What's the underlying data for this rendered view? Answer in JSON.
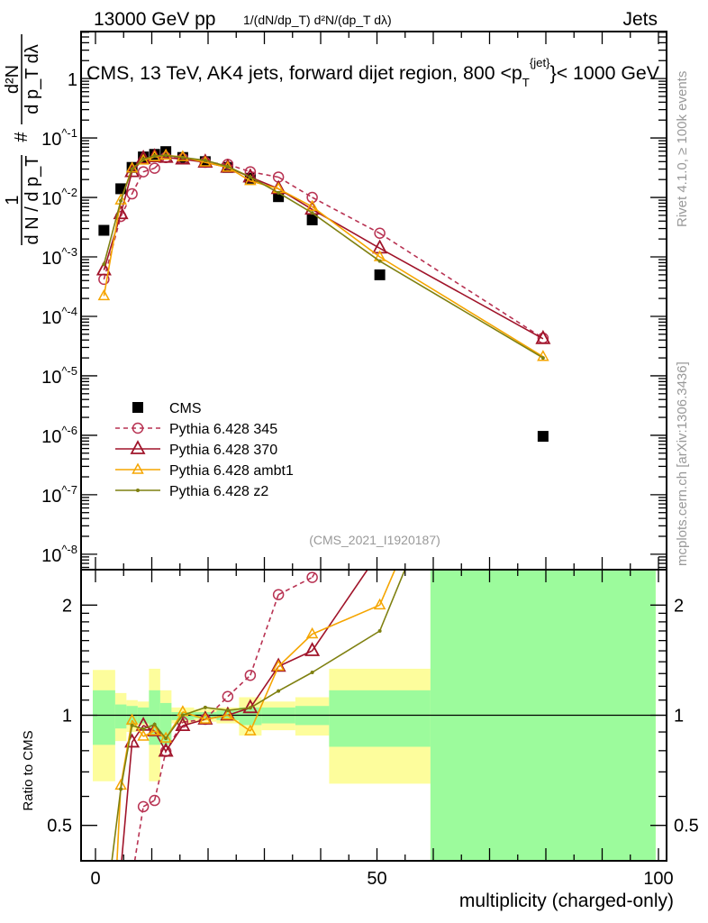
{
  "header": {
    "left": "13000 GeV pp",
    "right": "Jets"
  },
  "side_labels": {
    "rivet": "Rivet 4.1.0, ≥ 100k events",
    "mcplots": "mcplots.cern.ch [arXiv:1306.3436]"
  },
  "chart_data": {
    "type": "line",
    "title": "CMS, 13 TeV, AK4 jets, forward dijet region, 800 < p_T^{jet} < 1000 GeV",
    "title_parts": {
      "main": "CMS, 13 TeV, AK4 jets, forward dijet region, 800 <",
      "p": "p",
      "sup": "{jet}",
      "sub": "T",
      "end": "}< 1000 GeV"
    },
    "analysis_label": "(CMS_2021_I1920187)",
    "xlabel": "multiplicity (charged-only)",
    "ylabel": "1/(dN/dp_T) d²N/(dp_T dλ)",
    "ylabel_parts": {
      "one": "1",
      "den": "d N / d p_T",
      "num": "d²N",
      "den2": "d p_T  dλ",
      "hash": "#"
    },
    "ratio_ylabel": "Ratio to CMS",
    "xlim": [
      -2,
      101
    ],
    "ylim_log10": [
      -8.26,
      0.79
    ],
    "ratio_ylim": [
      0.4,
      2.5
    ],
    "x_tick_labels": [
      "0",
      "50",
      "100"
    ],
    "y_tick_labels": [
      "1",
      "10^-1",
      "10^-2",
      "10^-3",
      "10^-4",
      "10^-5",
      "10^-6",
      "10^-7",
      "10^-8"
    ],
    "ratio_tick_labels": [
      "0.5",
      "1",
      "2"
    ],
    "legend_position": "lower-left",
    "bin_edges": [
      -0.5,
      3.5,
      5.5,
      7.5,
      9.5,
      11.5,
      13.5,
      17.5,
      21.5,
      25.5,
      29.5,
      35.5,
      41.5,
      59.5,
      99.5
    ],
    "x": [
      1.5,
      4.5,
      6.5,
      8.5,
      10.5,
      12.5,
      15.5,
      19.5,
      23.5,
      27.5,
      32.5,
      38.5,
      50.5,
      79.5
    ],
    "series": [
      {
        "name": "CMS",
        "color": "#000000",
        "marker": "square",
        "values": [
          0.0028,
          0.014,
          0.032,
          0.048,
          0.053,
          0.059,
          0.047,
          0.04,
          0.032,
          0.021,
          0.0103,
          0.0042,
          0.0005,
          9.6e-07
        ]
      },
      {
        "name": "Pythia 6.428 345",
        "color": "#b83252",
        "marker": "circle",
        "dashed": true,
        "values": [
          0.00042,
          0.0048,
          0.0115,
          0.027,
          0.031,
          0.047,
          0.045,
          0.039,
          0.036,
          0.027,
          0.022,
          0.01,
          0.0025,
          4.3e-05
        ]
      },
      {
        "name": "Pythia 6.428 370",
        "color": "#a0142a",
        "marker": "triangle",
        "values": [
          0.0006,
          0.0053,
          0.027,
          0.045,
          0.048,
          0.047,
          0.044,
          0.039,
          0.032,
          0.022,
          0.014,
          0.0063,
          0.0014,
          4.2e-05
        ]
      },
      {
        "name": "Pythia 6.428 ambt1",
        "color": "#f5a500",
        "marker": "triangle-small",
        "values": [
          0.00022,
          0.009,
          0.031,
          0.042,
          0.048,
          0.051,
          0.048,
          0.039,
          0.032,
          0.019,
          0.014,
          0.007,
          0.001,
          2.1e-05
        ]
      },
      {
        "name": "Pythia 6.428 z2",
        "color": "#7f8010",
        "marker": "dot",
        "values": [
          0.00075,
          0.0088,
          0.03,
          0.044,
          0.05,
          0.051,
          0.047,
          0.042,
          0.033,
          0.022,
          0.012,
          0.0055,
          0.00085,
          2e-05
        ]
      }
    ],
    "ratio_bands": {
      "stat_color": "#9cfb9c",
      "total_color": "#fdfd9c",
      "stat": [
        [
          0.83,
          1.17
        ],
        [
          0.92,
          1.07
        ],
        [
          0.94,
          1.06
        ],
        [
          0.95,
          1.05
        ],
        [
          0.83,
          1.17
        ],
        [
          0.83,
          1.08
        ],
        [
          0.97,
          1.02
        ],
        [
          0.98,
          1.02
        ],
        [
          0.97,
          1.03
        ],
        [
          0.94,
          1.05
        ],
        [
          0.95,
          1.05
        ],
        [
          0.94,
          1.06
        ],
        [
          0.82,
          1.17
        ],
        [
          0.3,
          3.0
        ]
      ],
      "total": [
        [
          0.66,
          1.33
        ],
        [
          0.85,
          1.15
        ],
        [
          0.9,
          1.1
        ],
        [
          0.94,
          1.09
        ],
        [
          0.66,
          1.34
        ],
        [
          0.83,
          1.17
        ],
        [
          0.95,
          1.05
        ],
        [
          0.96,
          1.04
        ],
        [
          0.95,
          1.05
        ],
        [
          0.88,
          1.12
        ],
        [
          0.91,
          1.09
        ],
        [
          0.88,
          1.12
        ],
        [
          0.65,
          1.34
        ],
        [
          0.3,
          3.0
        ]
      ]
    }
  }
}
